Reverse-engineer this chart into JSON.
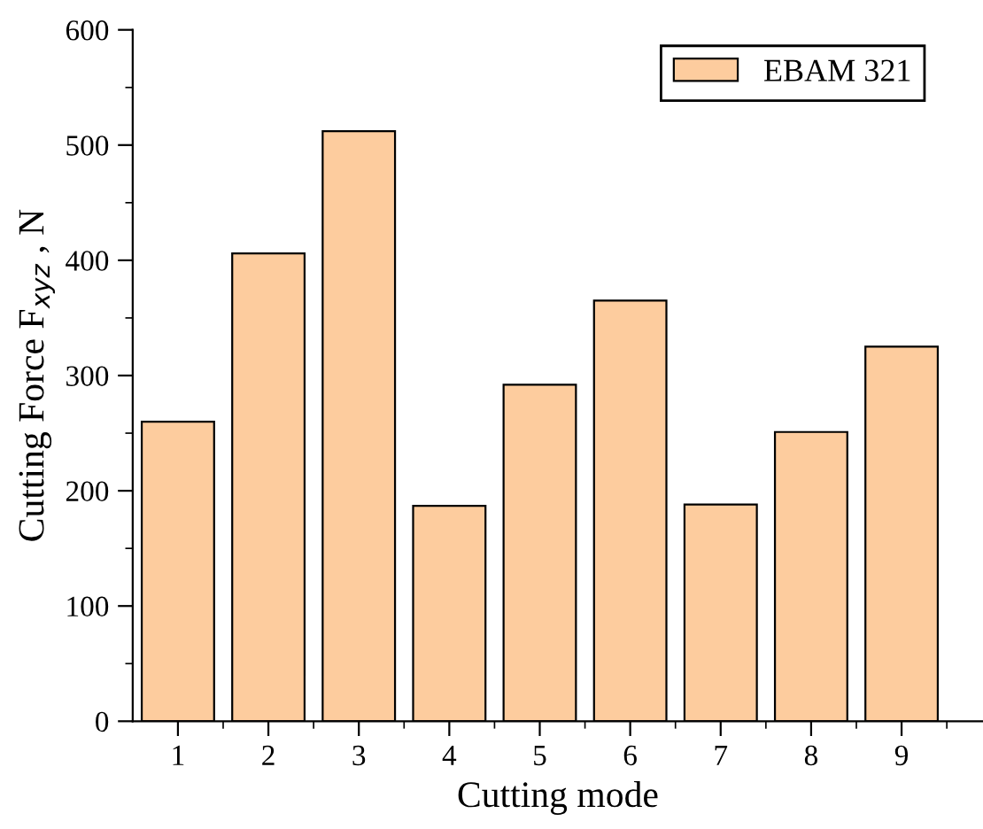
{
  "chart_data": {
    "type": "bar",
    "xlabel": "Cutting mode",
    "ylabel": "Cutting Force F$_{xyz}$ , N",
    "categories": [
      "1",
      "2",
      "3",
      "4",
      "5",
      "6",
      "7",
      "8",
      "9"
    ],
    "series": [
      {
        "name": "EBAM 321",
        "color": "#fdcc9e",
        "values": [
          260,
          406,
          512,
          187,
          292,
          365,
          188,
          251,
          325
        ]
      }
    ],
    "ylim": [
      0,
      600
    ],
    "yticks": [
      0,
      100,
      200,
      300,
      400,
      500,
      600
    ],
    "grid": false,
    "legend": "top right"
  }
}
